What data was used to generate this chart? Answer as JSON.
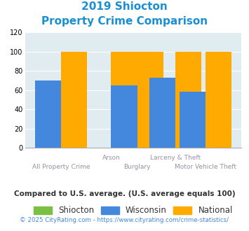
{
  "title_line1": "2019 Shiocton",
  "title_line2": "Property Crime Comparison",
  "categories": [
    "All Property Crime",
    "Arson",
    "Burglary",
    "Larceny & Theft",
    "Motor Vehicle Theft"
  ],
  "shiocton": [
    0,
    0,
    0,
    0,
    0
  ],
  "wisconsin": [
    70,
    0,
    65,
    73,
    58
  ],
  "national": [
    100,
    100,
    100,
    100,
    100
  ],
  "ylim": [
    0,
    120
  ],
  "yticks": [
    0,
    20,
    40,
    60,
    80,
    100,
    120
  ],
  "color_shiocton": "#7ac143",
  "color_wisconsin": "#4488dd",
  "color_national": "#ffaa00",
  "title_color": "#1a8fd1",
  "xlabel_color": "#9b8fa0",
  "legend_labels": [
    "Shiocton",
    "Wisconsin",
    "National"
  ],
  "legend_text_color": "#333333",
  "footnote1": "Compared to U.S. average. (U.S. average equals 100)",
  "footnote2": "© 2025 CityRating.com - https://www.cityrating.com/crime-statistics/",
  "footnote1_color": "#333333",
  "footnote2_color": "#4488dd",
  "background_color": "#e0ecf0",
  "bar_width": 0.13,
  "group_positions": [
    0.18,
    0.43,
    0.56,
    0.75,
    0.9
  ]
}
